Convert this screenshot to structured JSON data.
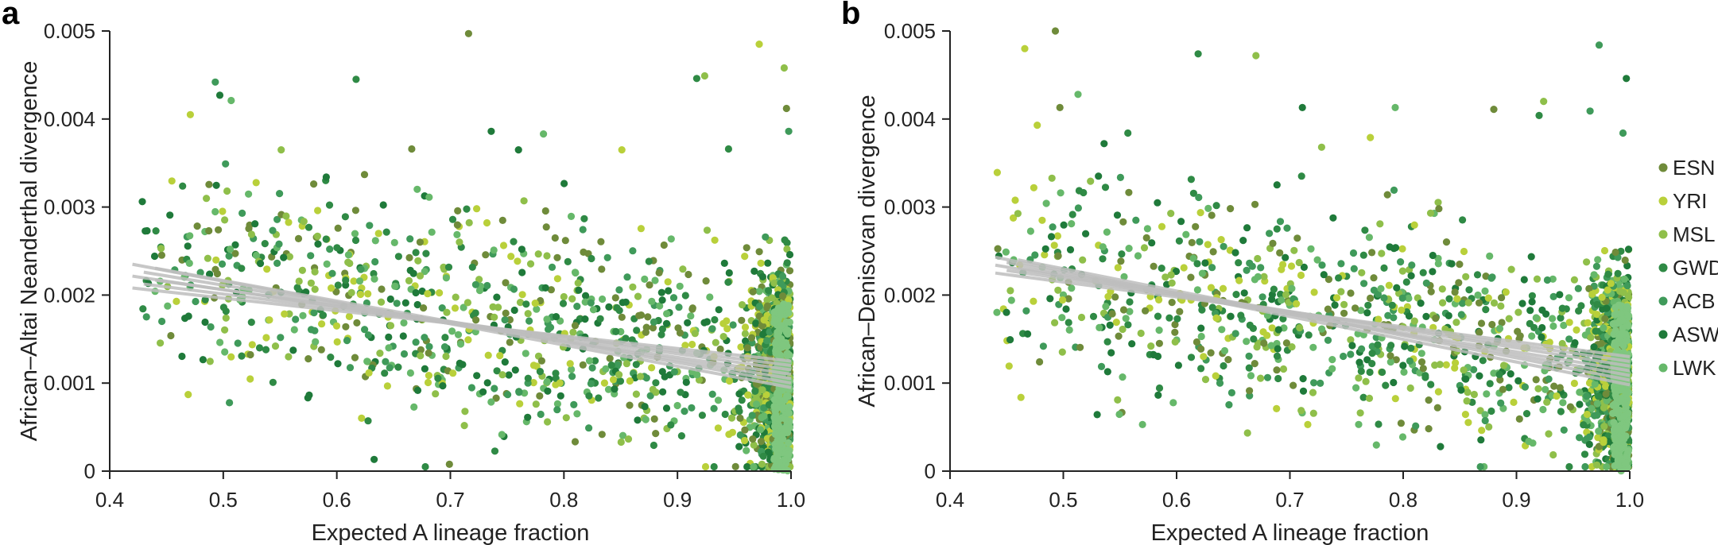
{
  "chart_data": [
    {
      "type": "scatter",
      "panel_label": "a",
      "title": "",
      "xlabel": "Expected A lineage fraction",
      "ylabel": "African–Altai Neanderthal divergence",
      "xlim": [
        0.4,
        1.0
      ],
      "ylim": [
        0,
        0.005
      ],
      "xticks": [
        0.4,
        0.5,
        0.6,
        0.7,
        0.8,
        0.9,
        1.0
      ],
      "xtick_labels": [
        "0.4",
        "0.5",
        "0.6",
        "0.7",
        "0.8",
        "0.9",
        "1.0"
      ],
      "yticks": [
        0,
        0.001,
        0.002,
        0.003,
        0.004,
        0.005
      ],
      "ytick_labels": [
        "0",
        "0.001",
        "0.002",
        "0.003",
        "0.004",
        "0.005"
      ],
      "grid": false,
      "trend": {
        "x_start": 0.42,
        "x_end": 1.0,
        "y_start_range": [
          0.00208,
          0.00235
        ],
        "y_end_range": [
          0.00095,
          0.00125
        ]
      },
      "highlight_points": [
        [
          0.716,
          0.00497
        ],
        [
          0.972,
          0.00485
        ],
        [
          0.994,
          0.00458
        ],
        [
          0.617,
          0.00445
        ],
        [
          0.493,
          0.00442
        ],
        [
          0.497,
          0.00427
        ],
        [
          0.507,
          0.00421
        ],
        [
          0.996,
          0.00412
        ],
        [
          0.471,
          0.00405
        ],
        [
          0.924,
          0.00449
        ],
        [
          0.917,
          0.00446
        ],
        [
          0.998,
          0.00386
        ],
        [
          0.736,
          0.00386
        ],
        [
          0.782,
          0.00383
        ],
        [
          0.666,
          0.00366
        ],
        [
          0.851,
          0.00365
        ],
        [
          0.551,
          0.00365
        ],
        [
          0.945,
          0.00366
        ],
        [
          0.502,
          0.00349
        ],
        [
          0.76,
          0.00365
        ]
      ]
    },
    {
      "type": "scatter",
      "panel_label": "b",
      "title": "",
      "xlabel": "Expected A lineage fraction",
      "ylabel": "African–Denisovan divergence",
      "xlim": [
        0.4,
        1.0
      ],
      "ylim": [
        0,
        0.005
      ],
      "xticks": [
        0.4,
        0.5,
        0.6,
        0.7,
        0.8,
        0.9,
        1.0
      ],
      "xtick_labels": [
        "0.4",
        "0.5",
        "0.6",
        "0.7",
        "0.8",
        "0.9",
        "1.0"
      ],
      "yticks": [
        0,
        0.001,
        0.002,
        0.003,
        0.004,
        0.005
      ],
      "ytick_labels": [
        "0",
        "0.001",
        "0.002",
        "0.003",
        "0.004",
        "0.005"
      ],
      "grid": false,
      "trend": {
        "x_start": 0.44,
        "x_end": 1.0,
        "y_start_range": [
          0.00225,
          0.00243
        ],
        "y_end_range": [
          0.00098,
          0.0013
        ]
      },
      "highlight_points": [
        [
          0.493,
          0.005
        ],
        [
          0.466,
          0.0048
        ],
        [
          0.67,
          0.00472
        ],
        [
          0.619,
          0.00474
        ],
        [
          0.973,
          0.00484
        ],
        [
          0.997,
          0.00446
        ],
        [
          0.513,
          0.00428
        ],
        [
          0.497,
          0.00413
        ],
        [
          0.477,
          0.00393
        ],
        [
          0.924,
          0.0042
        ],
        [
          0.92,
          0.00404
        ],
        [
          0.965,
          0.00409
        ],
        [
          0.711,
          0.00413
        ],
        [
          0.793,
          0.00413
        ],
        [
          0.88,
          0.00411
        ],
        [
          0.771,
          0.00379
        ],
        [
          0.728,
          0.00368
        ],
        [
          0.557,
          0.00384
        ],
        [
          0.994,
          0.00384
        ],
        [
          0.536,
          0.00372
        ]
      ]
    }
  ],
  "legend": {
    "placement": "right",
    "items": [
      {
        "label": "ESN",
        "color": "#6f8b3a"
      },
      {
        "label": "YRI",
        "color": "#b9d03a"
      },
      {
        "label": "MSL",
        "color": "#8fbf4a"
      },
      {
        "label": "GWD",
        "color": "#2f8a45"
      },
      {
        "label": "ACB",
        "color": "#3f9a5a"
      },
      {
        "label": "ASW",
        "color": "#1f7a3a"
      },
      {
        "label": "LWK",
        "color": "#66b86a"
      }
    ]
  },
  "colors": {
    "trend_line": "#bdbdbd",
    "axis": "#222222"
  }
}
